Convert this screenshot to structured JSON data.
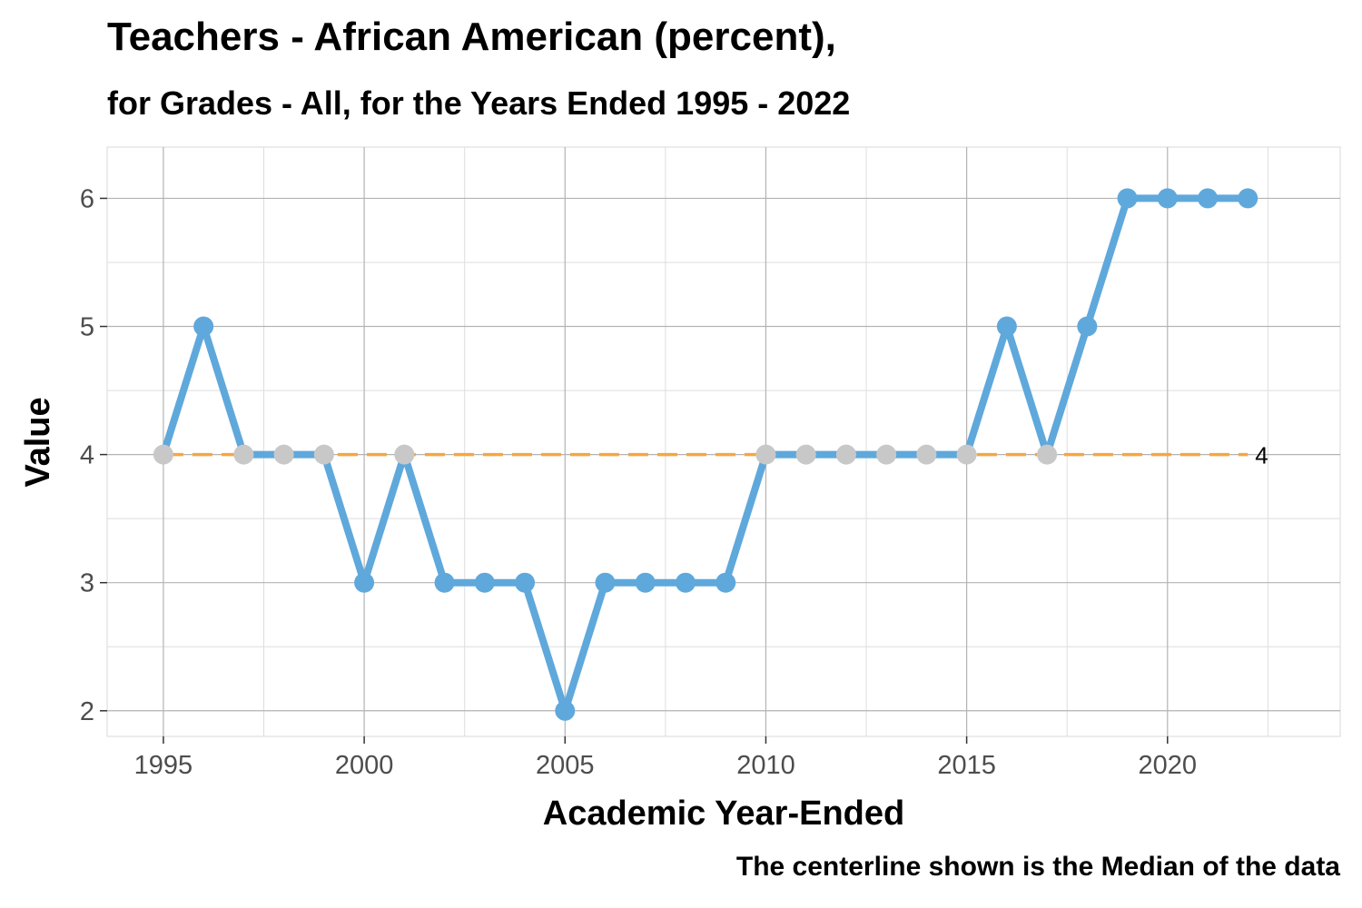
{
  "chart_data": {
    "type": "line",
    "title": "Teachers - African American (percent),",
    "subtitle": "for Grades - All, for the Years Ended 1995  -  2022",
    "xlabel": "Academic Year-Ended",
    "ylabel": "Value",
    "caption": "The centerline shown is the Median of the data",
    "xlim": [
      1993.6,
      2024.3
    ],
    "ylim": [
      1.8,
      6.4
    ],
    "x_ticks": [
      1995,
      2000,
      2005,
      2010,
      2015,
      2020
    ],
    "y_ticks": [
      2,
      3,
      4,
      5,
      6
    ],
    "grid": true,
    "centerline": {
      "type": "median",
      "value": 4,
      "label": "4",
      "color": "#F5A742"
    },
    "series": [
      {
        "color": "#5FA8DC",
        "x": [
          1995,
          1996,
          1997,
          1998,
          1999,
          2000,
          2001,
          2002,
          2003,
          2004,
          2005,
          2006,
          2007,
          2008,
          2009,
          2010,
          2011,
          2012,
          2013,
          2014,
          2015,
          2016,
          2017,
          2018,
          2019,
          2020,
          2021,
          2022
        ],
        "values": [
          4,
          5,
          4,
          4,
          4,
          3,
          4,
          3,
          3,
          3,
          2,
          3,
          3,
          3,
          3,
          4,
          4,
          4,
          4,
          4,
          4,
          5,
          4,
          5,
          6,
          6,
          6,
          6
        ]
      }
    ],
    "point_colors": {
      "on_centerline": "#C8C8C8",
      "off_centerline": "#5FA8DC"
    }
  }
}
